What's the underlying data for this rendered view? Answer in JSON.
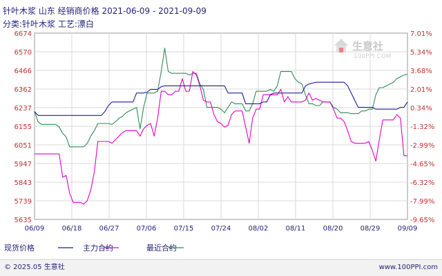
{
  "header": {
    "title": "针叶木浆 山东 经销商价格 2021-06-09 - 2021-09-09",
    "subtitle": "分类:针叶木浆 工艺:漂白"
  },
  "watermark": {
    "name": "生意社",
    "url": "100PPI.COM"
  },
  "legend": [
    {
      "label": "现货价格",
      "color": "#1c1c9a"
    },
    {
      "label": "主力合约",
      "color": "#e000c8"
    },
    {
      "label": "最近合约",
      "color": "#2e8b57"
    }
  ],
  "footer": {
    "copyright": "© 2025.05 生意社",
    "site": "www.100PPI.com"
  },
  "chart_data": {
    "type": "line",
    "x_ticks": [
      "06/09",
      "06/18",
      "06/27",
      "07/06",
      "07/15",
      "07/24",
      "08/02",
      "08/11",
      "08/20",
      "08/29",
      "09/09"
    ],
    "y_left_ticks": [
      "6674",
      "6570",
      "6466",
      "6362",
      "6237",
      "6155",
      "6051",
      "5947",
      "5843",
      "5739",
      "5635"
    ],
    "y_right_ticks": [
      "7.01%",
      "5.34%",
      "3.68%",
      "2.01%",
      "0.34%",
      "-1.32%",
      "-2.99%",
      "-4.65%",
      "-6.32%",
      "-7.99%",
      "-9.65%"
    ],
    "ylim": [
      5635,
      6674
    ],
    "grid": true,
    "legend_position": "bottom",
    "series": [
      {
        "name": "现货价格",
        "color": "#1c1c9a",
        "values": [
          6237,
          6215,
          6215,
          6215,
          6215,
          6215,
          6215,
          6215,
          6215,
          6215,
          6215,
          6215,
          6215,
          6215,
          6215,
          6215,
          6215,
          6215,
          6215,
          6215,
          6237,
          6270,
          6290,
          6290,
          6290,
          6290,
          6290,
          6290,
          6290,
          6340,
          6340,
          6340,
          6345,
          6360,
          6360,
          6360,
          6375,
          6380,
          6380,
          6380,
          6380,
          6380,
          6380,
          6380,
          6380,
          6380,
          6380,
          6380,
          6380,
          6380,
          6380,
          6380,
          6380,
          6380,
          6380,
          6340,
          6340,
          6340,
          6340,
          6340,
          6280,
          6280,
          6280,
          6280,
          6280,
          6290,
          6290,
          6330,
          6340,
          6340,
          6340,
          6340,
          6340,
          6340,
          6340,
          6340,
          6340,
          6380,
          6390,
          6395,
          6400,
          6400,
          6400,
          6400,
          6400,
          6400,
          6400,
          6400,
          6400,
          6380,
          6340,
          6300,
          6260,
          6260,
          6260,
          6260,
          6260,
          6250,
          6250,
          6250,
          6250,
          6250,
          6250,
          6250,
          6260,
          6260,
          6290
        ]
      },
      {
        "name": "主力合约",
        "color": "#e000c8",
        "values": [
          6000,
          6000,
          6000,
          6000,
          6000,
          6000,
          6000,
          6000,
          5870,
          5880,
          5780,
          5730,
          5730,
          5730,
          5720,
          5740,
          5800,
          5900,
          6070,
          6070,
          6070,
          6070,
          6060,
          6080,
          6100,
          6120,
          6130,
          6130,
          6130,
          6130,
          6100,
          6140,
          6160,
          6170,
          6100,
          6200,
          6350,
          6350,
          6330,
          6330,
          6350,
          6350,
          6420,
          6350,
          6350,
          6460,
          6440,
          6380,
          6300,
          6290,
          6290,
          6220,
          6180,
          6170,
          6150,
          6160,
          6220,
          6240,
          6240,
          6240,
          6150,
          6060,
          6200,
          6250,
          6250,
          6330,
          6330,
          6330,
          6330,
          6330,
          6360,
          6290,
          6320,
          6290,
          6290,
          6290,
          6290,
          6300,
          6340,
          6300,
          6310,
          6300,
          6290,
          6290,
          6290,
          6250,
          6200,
          6200,
          6180,
          6130,
          6070,
          6060,
          6060,
          6060,
          6060,
          6070,
          6020,
          5960,
          6080,
          6190,
          6190,
          6190,
          6190,
          6220,
          6200,
          5990,
          5990
        ]
      },
      {
        "name": "最近合约",
        "color": "#2e8b57",
        "values": [
          6237,
          6180,
          6165,
          6165,
          6165,
          6165,
          6165,
          6150,
          6115,
          6095,
          6040,
          6040,
          6040,
          6040,
          6040,
          6060,
          6100,
          6130,
          6170,
          6170,
          6170,
          6170,
          6165,
          6180,
          6200,
          6210,
          6230,
          6240,
          6250,
          6260,
          6140,
          6260,
          6340,
          6340,
          6340,
          6350,
          6460,
          6590,
          6460,
          6450,
          6450,
          6450,
          6450,
          6450,
          6440,
          6450,
          6450,
          6390,
          6360,
          6260,
          6260,
          6260,
          6260,
          6250,
          6230,
          6260,
          6290,
          6280,
          6280,
          6280,
          6240,
          6240,
          6280,
          6350,
          6350,
          6350,
          6350,
          6360,
          6350,
          6380,
          6460,
          6460,
          6460,
          6460,
          6420,
          6400,
          6390,
          6330,
          6280,
          6280,
          6270,
          6270,
          6290,
          6290,
          6290,
          6260,
          6250,
          6230,
          6230,
          6230,
          6225,
          6225,
          6225,
          6240,
          6240,
          6250,
          6250,
          6330,
          6370,
          6370,
          6380,
          6390,
          6400,
          6420,
          6430,
          6440,
          6445
        ]
      }
    ]
  }
}
